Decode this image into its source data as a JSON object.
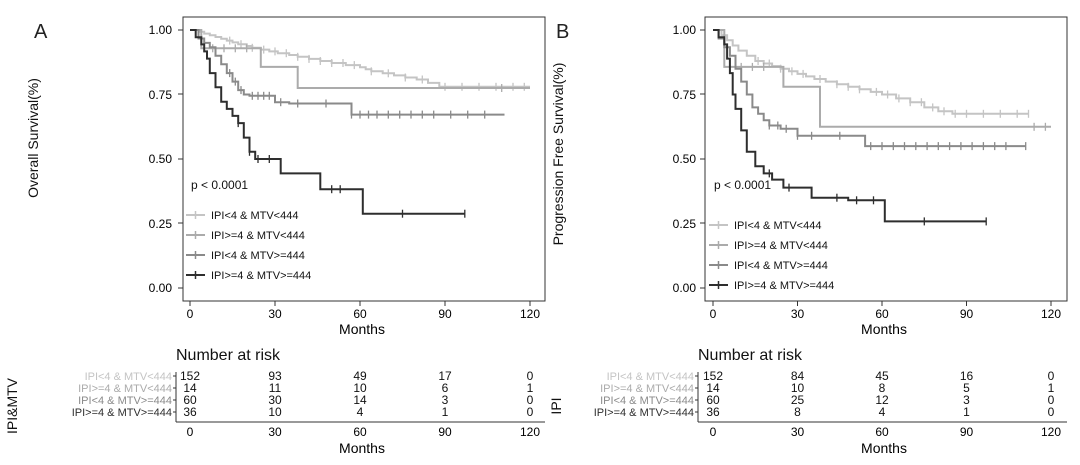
{
  "colors": {
    "series": [
      "#c4c4c4",
      "#ababab",
      "#8a8a8a",
      "#2e2e2e"
    ],
    "axis": "#000000",
    "panel_border": "#333333"
  },
  "panels": [
    {
      "letter": "A",
      "ylabel": "Overall Survival(%)",
      "xlabel": "Months",
      "pvalue": "p < 0.0001",
      "yticks": [
        "0.00",
        "0.25",
        "0.50",
        "0.75",
        "1.00"
      ],
      "xticks": [
        "0",
        "30",
        "60",
        "90",
        "120"
      ],
      "legend": [
        "IPI<4 & MTV<444",
        "IPI>=4 & MTV<444",
        "IPI<4 & MTV>=444",
        "IPI>=4 & MTV>=444"
      ],
      "risk_title": "Number at risk",
      "risk_ylabel": "IPI&MTV",
      "risk_xlabel": "Months",
      "risk_xticks": [
        "0",
        "30",
        "60",
        "90",
        "120"
      ],
      "risk_rows": [
        {
          "label": "IPI<4 & MTV<444",
          "values": [
            "152",
            "93",
            "49",
            "17",
            "0"
          ]
        },
        {
          "label": "IPI>=4 & MTV<444",
          "values": [
            "14",
            "11",
            "10",
            "6",
            "1"
          ]
        },
        {
          "label": "IPI<4 & MTV>=444",
          "values": [
            "60",
            "30",
            "14",
            "3",
            "0"
          ]
        },
        {
          "label": "IPI>=4 & MTV>=444",
          "values": [
            "36",
            "10",
            "4",
            "1",
            "0"
          ]
        }
      ]
    },
    {
      "letter": "B",
      "ylabel": "Progression Free Survival(%)",
      "xlabel": "Months",
      "pvalue": "p < 0.0001",
      "yticks": [
        "0.00",
        "0.25",
        "0.50",
        "0.75",
        "1.00"
      ],
      "xticks": [
        "0",
        "30",
        "60",
        "90",
        "120"
      ],
      "legend": [
        "IPI<4 & MTV<444",
        "IPI>=4 & MTV<444",
        "IPI<4 & MTV>=444",
        "IPI>=4 & MTV>=444"
      ],
      "risk_title": "Number at risk",
      "risk_ylabel": "IPI",
      "risk_xlabel": "Months",
      "risk_xticks": [
        "0",
        "30",
        "60",
        "90",
        "120"
      ],
      "risk_rows": [
        {
          "label": "IPI<4 & MTV<444",
          "values": [
            "152",
            "84",
            "45",
            "16",
            "0"
          ]
        },
        {
          "label": "IPI>=4 & MTV<444",
          "values": [
            "14",
            "10",
            "8",
            "5",
            "1"
          ]
        },
        {
          "label": "IPI<4 & MTV>=444",
          "values": [
            "60",
            "25",
            "12",
            "3",
            "0"
          ]
        },
        {
          "label": "IPI>=4 & MTV>=444",
          "values": [
            "36",
            "8",
            "4",
            "1",
            "0"
          ]
        }
      ]
    }
  ],
  "chart_data": [
    {
      "type": "line",
      "step": true,
      "xlim": [
        0,
        120
      ],
      "ylim": [
        0,
        1
      ],
      "grid": false,
      "legend_position": "inside-lower-left",
      "series": [
        {
          "name": "IPI<4 & MTV<444",
          "x": [
            0,
            3,
            5,
            7,
            9,
            11,
            13,
            15,
            17,
            20,
            22,
            25,
            28,
            31,
            35,
            38,
            42,
            46,
            50,
            55,
            60,
            62,
            64,
            68,
            72,
            76,
            80,
            84,
            88,
            120
          ],
          "y": [
            1.0,
            0.993,
            0.986,
            0.98,
            0.973,
            0.966,
            0.959,
            0.952,
            0.945,
            0.938,
            0.931,
            0.924,
            0.917,
            0.91,
            0.903,
            0.896,
            0.888,
            0.88,
            0.872,
            0.864,
            0.856,
            0.848,
            0.84,
            0.832,
            0.824,
            0.816,
            0.808,
            0.795,
            0.78,
            0.78
          ],
          "censor_x": [
            14,
            18,
            22,
            26,
            30,
            34,
            38,
            42,
            46,
            50,
            54,
            58,
            64,
            70,
            76,
            82,
            90,
            96,
            102,
            108,
            114,
            118
          ]
        },
        {
          "name": "IPI>=4 & MTV<444",
          "x": [
            0,
            4,
            25,
            38,
            120
          ],
          "y": [
            1.0,
            0.929,
            0.857,
            0.775,
            0.775
          ],
          "censor_x": [
            5,
            8,
            12,
            16,
            20,
            110
          ]
        },
        {
          "name": "IPI<4 & MTV>=444",
          "x": [
            0,
            3,
            5,
            7,
            9,
            11,
            13,
            15,
            17,
            19,
            21,
            25,
            30,
            35,
            40,
            57,
            111
          ],
          "y": [
            1.0,
            0.967,
            0.95,
            0.933,
            0.9,
            0.867,
            0.833,
            0.8,
            0.767,
            0.75,
            0.745,
            0.745,
            0.72,
            0.715,
            0.715,
            0.672,
            0.672
          ],
          "censor_x": [
            14,
            16,
            18,
            22,
            24,
            26,
            28,
            32,
            38,
            48,
            57,
            60,
            63,
            66,
            70,
            74,
            78,
            82,
            86,
            92,
            98,
            104
          ]
        },
        {
          "name": "IPI>=4 & MTV>=444",
          "x": [
            0,
            2,
            4,
            5,
            6,
            7,
            9,
            11,
            13,
            15,
            17,
            19,
            21,
            23,
            26,
            32,
            35,
            46,
            61,
            97
          ],
          "y": [
            1.0,
            0.972,
            0.944,
            0.917,
            0.889,
            0.833,
            0.778,
            0.722,
            0.694,
            0.667,
            0.639,
            0.583,
            0.528,
            0.5,
            0.5,
            0.444,
            0.444,
            0.383,
            0.288,
            0.288
          ],
          "censor_x": [
            17,
            21,
            24,
            28,
            50,
            53,
            75,
            97
          ]
        }
      ]
    },
    {
      "type": "line",
      "step": true,
      "xlim": [
        0,
        120
      ],
      "ylim": [
        0,
        1
      ],
      "grid": false,
      "legend_position": "inside-lower-left",
      "series": [
        {
          "name": "IPI<4 & MTV<444",
          "x": [
            0,
            3,
            5,
            7,
            9,
            12,
            15,
            18,
            21,
            24,
            27,
            30,
            33,
            36,
            40,
            44,
            48,
            52,
            56,
            60,
            65,
            70,
            75,
            80,
            85,
            90,
            112
          ],
          "y": [
            1.0,
            0.98,
            0.96,
            0.94,
            0.92,
            0.9,
            0.88,
            0.87,
            0.86,
            0.85,
            0.84,
            0.83,
            0.82,
            0.81,
            0.8,
            0.79,
            0.78,
            0.77,
            0.76,
            0.75,
            0.735,
            0.72,
            0.7,
            0.685,
            0.675,
            0.675,
            0.675
          ],
          "censor_x": [
            16,
            20,
            24,
            28,
            32,
            38,
            44,
            48,
            52,
            58,
            62,
            66,
            70,
            74,
            78,
            82,
            86,
            90,
            96,
            102,
            108,
            112
          ]
        },
        {
          "name": "IPI>=4 & MTV<444",
          "x": [
            0,
            4,
            25,
            38,
            120
          ],
          "y": [
            1.0,
            0.857,
            0.78,
            0.625,
            0.625
          ],
          "censor_x": [
            6,
            10,
            14,
            18,
            114,
            118
          ]
        },
        {
          "name": "IPI<4 & MTV>=444",
          "x": [
            0,
            2,
            4,
            6,
            8,
            10,
            12,
            14,
            16,
            18,
            20,
            24,
            30,
            40,
            54,
            111
          ],
          "y": [
            1.0,
            0.967,
            0.933,
            0.9,
            0.85,
            0.8,
            0.75,
            0.7,
            0.675,
            0.65,
            0.63,
            0.617,
            0.59,
            0.59,
            0.55,
            0.55
          ],
          "censor_x": [
            20,
            23,
            26,
            30,
            35,
            45,
            56,
            60,
            64,
            68,
            72,
            76,
            80,
            84,
            88,
            92,
            96,
            100,
            104,
            111
          ]
        },
        {
          "name": "IPI>=4 & MTV>=444",
          "x": [
            0,
            2,
            4,
            5,
            6,
            7,
            8,
            10,
            12,
            15,
            18,
            21,
            25,
            30,
            35,
            48,
            61,
            97
          ],
          "y": [
            1.0,
            0.972,
            0.944,
            0.889,
            0.833,
            0.75,
            0.694,
            0.611,
            0.528,
            0.472,
            0.444,
            0.42,
            0.389,
            0.389,
            0.35,
            0.34,
            0.258,
            0.258
          ],
          "censor_x": [
            20,
            27,
            44,
            51,
            57,
            75,
            97
          ]
        }
      ]
    }
  ]
}
